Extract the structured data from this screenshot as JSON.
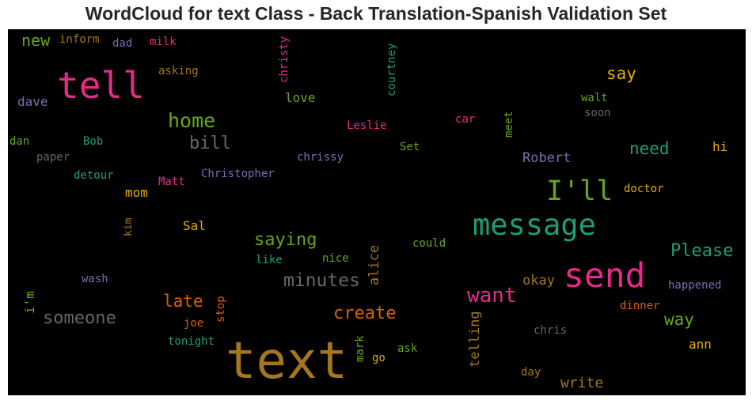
{
  "chart_data": {
    "type": "wordcloud",
    "title": "WordCloud for text Class - Back Translation-Spanish Validation Set",
    "background": "#000000",
    "words": [
      {
        "text": "text",
        "size": 64,
        "color": "#a6761d",
        "vertical": false
      },
      {
        "text": "tell",
        "size": 46,
        "color": "#e7298a",
        "vertical": false
      },
      {
        "text": "send",
        "size": 43,
        "color": "#e7298a",
        "vertical": false
      },
      {
        "text": "message",
        "size": 37,
        "color": "#1b9e77",
        "vertical": false
      },
      {
        "text": "I'll",
        "size": 35,
        "color": "#66a61e",
        "vertical": false
      },
      {
        "text": "want",
        "size": 26,
        "color": "#e7298a",
        "vertical": false
      },
      {
        "text": "home",
        "size": 25,
        "color": "#66a61e",
        "vertical": false
      },
      {
        "text": "minutes",
        "size": 23,
        "color": "#666666",
        "vertical": false
      },
      {
        "text": "someone",
        "size": 22,
        "color": "#666666",
        "vertical": false
      },
      {
        "text": "Please",
        "size": 22,
        "color": "#1b9e77",
        "vertical": false
      },
      {
        "text": "saying",
        "size": 22,
        "color": "#66a61e",
        "vertical": false
      },
      {
        "text": "bill",
        "size": 22,
        "color": "#666666",
        "vertical": false
      },
      {
        "text": "create",
        "size": 22,
        "color": "#d95f02",
        "vertical": false
      },
      {
        "text": "late",
        "size": 21,
        "color": "#d95f02",
        "vertical": false
      },
      {
        "text": "need",
        "size": 21,
        "color": "#1b9e77",
        "vertical": false
      },
      {
        "text": "say",
        "size": 21,
        "color": "#e6ab02",
        "vertical": false
      },
      {
        "text": "way",
        "size": 21,
        "color": "#66a61e",
        "vertical": false
      },
      {
        "text": "new",
        "size": 20,
        "color": "#66a61e",
        "vertical": false
      },
      {
        "text": "write",
        "size": 18,
        "color": "#a6761d",
        "vertical": false
      },
      {
        "text": "Robert",
        "size": 17,
        "color": "#7570b3",
        "vertical": false
      },
      {
        "text": "telling",
        "size": 17,
        "color": "#a6761d",
        "vertical": true
      },
      {
        "text": "alice",
        "size": 17,
        "color": "#a6761d",
        "vertical": true
      },
      {
        "text": "okay",
        "size": 17,
        "color": "#a6761d",
        "vertical": false
      },
      {
        "text": "love",
        "size": 16,
        "color": "#66a61e",
        "vertical": false
      },
      {
        "text": "Sal",
        "size": 16,
        "color": "#e6ab02",
        "vertical": false
      },
      {
        "text": "mom",
        "size": 16,
        "color": "#e6ab02",
        "vertical": false
      },
      {
        "text": "ann",
        "size": 16,
        "color": "#e6ab02",
        "vertical": false
      },
      {
        "text": "hi",
        "size": 16,
        "color": "#e6ab02",
        "vertical": false
      },
      {
        "text": "dave",
        "size": 16,
        "color": "#7570b3",
        "vertical": false
      },
      {
        "text": "i'm",
        "size": 16,
        "color": "#66a61e",
        "vertical": true
      },
      {
        "text": "Christopher",
        "size": 14,
        "color": "#7570b3",
        "vertical": false
      },
      {
        "text": "chrissy",
        "size": 14,
        "color": "#7570b3",
        "vertical": false
      },
      {
        "text": "Leslie",
        "size": 14,
        "color": "#e7298a",
        "vertical": false
      },
      {
        "text": "doctor",
        "size": 14,
        "color": "#e6ab02",
        "vertical": false
      },
      {
        "text": "happened",
        "size": 14,
        "color": "#7570b3",
        "vertical": false
      },
      {
        "text": "dinner",
        "size": 14,
        "color": "#d95f02",
        "vertical": false
      },
      {
        "text": "chris",
        "size": 14,
        "color": "#666666",
        "vertical": false
      },
      {
        "text": "asking",
        "size": 14,
        "color": "#a6761d",
        "vertical": false
      },
      {
        "text": "detour",
        "size": 14,
        "color": "#1b9e77",
        "vertical": false
      },
      {
        "text": "tonight",
        "size": 14,
        "color": "#1b9e77",
        "vertical": false
      },
      {
        "text": "could",
        "size": 14,
        "color": "#66a61e",
        "vertical": false
      },
      {
        "text": "christy",
        "size": 14,
        "color": "#e7298a",
        "vertical": true
      },
      {
        "text": "courtney",
        "size": 14,
        "color": "#1b9e77",
        "vertical": true
      },
      {
        "text": "inform",
        "size": 14,
        "color": "#a6761d",
        "vertical": false
      },
      {
        "text": "Matt",
        "size": 14,
        "color": "#e7298a",
        "vertical": false
      },
      {
        "text": "nice",
        "size": 14,
        "color": "#66a61e",
        "vertical": false
      },
      {
        "text": "like",
        "size": 14,
        "color": "#1b9e77",
        "vertical": false
      },
      {
        "text": "wash",
        "size": 14,
        "color": "#7570b3",
        "vertical": false
      },
      {
        "text": "stop",
        "size": 14,
        "color": "#d95f02",
        "vertical": true
      },
      {
        "text": "joe",
        "size": 14,
        "color": "#d95f02",
        "vertical": false
      },
      {
        "text": "soon",
        "size": 14,
        "color": "#666666",
        "vertical": false
      },
      {
        "text": "walt",
        "size": 14,
        "color": "#66a61e",
        "vertical": false
      },
      {
        "text": "car",
        "size": 14,
        "color": "#e7298a",
        "vertical": false
      },
      {
        "text": "meet",
        "size": 14,
        "color": "#66a61e",
        "vertical": true
      },
      {
        "text": "Set",
        "size": 14,
        "color": "#66a61e",
        "vertical": false
      },
      {
        "text": "ask",
        "size": 14,
        "color": "#66a61e",
        "vertical": false
      },
      {
        "text": "go",
        "size": 14,
        "color": "#e6ab02",
        "vertical": false
      },
      {
        "text": "mark",
        "size": 14,
        "color": "#66a61e",
        "vertical": true
      },
      {
        "text": "day",
        "size": 14,
        "color": "#a6761d",
        "vertical": false
      },
      {
        "text": "dad",
        "size": 14,
        "color": "#7570b3",
        "vertical": false
      },
      {
        "text": "milk",
        "size": 14,
        "color": "#e7298a",
        "vertical": false
      },
      {
        "text": "dan",
        "size": 14,
        "color": "#66a61e",
        "vertical": false
      },
      {
        "text": "Bob",
        "size": 14,
        "color": "#1b9e77",
        "vertical": false
      },
      {
        "text": "paper",
        "size": 14,
        "color": "#666666",
        "vertical": false
      },
      {
        "text": "kim",
        "size": 13,
        "color": "#a6761d",
        "vertical": true
      }
    ]
  }
}
